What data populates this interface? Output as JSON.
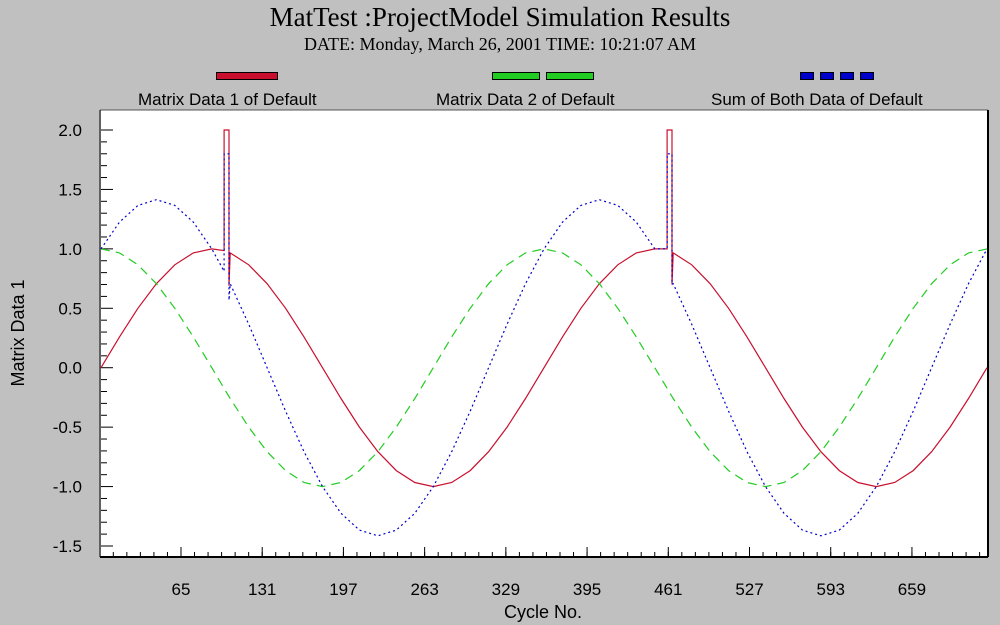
{
  "header": {
    "title": "MatTest :ProjectModel Simulation Results",
    "subtitle": "DATE: Monday, March 26, 2001  TIME: 10:21:07 AM"
  },
  "colors": {
    "series1": "#c8102e",
    "series2": "#22cc22",
    "series3": "#0000cc",
    "background": "#c0c0c0",
    "plot_background": "#ffffff"
  },
  "chart_data": {
    "type": "line",
    "title": "MatTest :ProjectModel Simulation Results",
    "subtitle": "DATE: Monday, March 26, 2001  TIME: 10:21:07 AM",
    "xlabel": "Cycle No.",
    "ylabel": "Matrix Data 1",
    "xlim": [
      0,
      720
    ],
    "ylim": [
      -1.5,
      2.0
    ],
    "x_ticks": [
      "65",
      "131",
      "197",
      "263",
      "329",
      "395",
      "461",
      "527",
      "593",
      "659"
    ],
    "y_ticks": [
      "2.0",
      "1.5",
      "1.0",
      "0.5",
      "0.0",
      "-0.5",
      "-1.0",
      "-1.5"
    ],
    "legend_position": "top",
    "grid": false,
    "x": [
      0,
      15,
      30,
      45,
      60,
      75,
      90,
      100,
      105,
      120,
      135,
      150,
      165,
      180,
      195,
      210,
      225,
      240,
      255,
      270,
      285,
      300,
      315,
      330,
      345,
      360,
      375,
      390,
      405,
      420,
      435,
      450,
      465,
      480,
      495,
      510,
      525,
      540,
      555,
      570,
      585,
      600,
      615,
      630,
      645,
      660,
      675,
      690,
      705,
      720
    ],
    "series": [
      {
        "name": "Matrix Data 1 of Default",
        "style": "solid",
        "values": [
          0.0,
          0.259,
          0.5,
          0.707,
          0.866,
          0.966,
          1.0,
          0.985,
          0.966,
          0.866,
          0.707,
          0.5,
          0.259,
          0.0,
          -0.259,
          -0.5,
          -0.707,
          -0.866,
          -0.966,
          -1.0,
          -0.966,
          -0.866,
          -0.707,
          -0.5,
          -0.259,
          0.0,
          0.259,
          0.5,
          0.707,
          0.866,
          0.966,
          1.0,
          0.966,
          0.866,
          0.707,
          0.5,
          0.259,
          0.0,
          -0.259,
          -0.5,
          -0.707,
          -0.866,
          -0.966,
          -1.0,
          -0.966,
          -0.866,
          -0.707,
          -0.5,
          -0.259,
          0.0
        ],
        "spikes": [
          {
            "x_start": 100,
            "x_end": 104,
            "value": 2.0
          },
          {
            "x_start": 460,
            "x_end": 464,
            "value": 2.0
          }
        ]
      },
      {
        "name": "Matrix Data 2 of Default",
        "style": "dashed",
        "values": [
          1.0,
          0.966,
          0.866,
          0.707,
          0.5,
          0.259,
          0.0,
          -0.174,
          -0.259,
          -0.5,
          -0.707,
          -0.866,
          -0.966,
          -1.0,
          -0.966,
          -0.866,
          -0.707,
          -0.5,
          -0.259,
          0.0,
          0.259,
          0.5,
          0.707,
          0.866,
          0.966,
          1.0,
          0.966,
          0.866,
          0.707,
          0.5,
          0.259,
          0.0,
          -0.259,
          -0.5,
          -0.707,
          -0.866,
          -0.966,
          -1.0,
          -0.966,
          -0.866,
          -0.707,
          -0.5,
          -0.259,
          0.0,
          0.259,
          0.5,
          0.707,
          0.866,
          0.966,
          1.0
        ]
      },
      {
        "name": "Sum of Both Data of Default",
        "style": "dotted",
        "values": [
          1.0,
          1.225,
          1.366,
          1.414,
          1.366,
          1.225,
          1.0,
          0.811,
          0.707,
          0.366,
          0.0,
          -0.366,
          -0.707,
          -1.0,
          -1.225,
          -1.366,
          -1.414,
          -1.366,
          -1.225,
          -1.0,
          -0.707,
          -0.366,
          0.0,
          0.366,
          0.707,
          1.0,
          1.225,
          1.366,
          1.414,
          1.366,
          1.225,
          1.0,
          0.707,
          0.366,
          0.0,
          -0.366,
          -0.707,
          -1.0,
          -1.225,
          -1.366,
          -1.414,
          -1.366,
          -1.225,
          -1.0,
          -0.707,
          -0.366,
          0.0,
          0.366,
          0.707,
          1.0
        ],
        "spikes": [
          {
            "x_start": 100,
            "x_end": 104,
            "value": 1.8
          },
          {
            "x_start": 460,
            "x_end": 464,
            "value": 1.8
          }
        ]
      }
    ]
  }
}
